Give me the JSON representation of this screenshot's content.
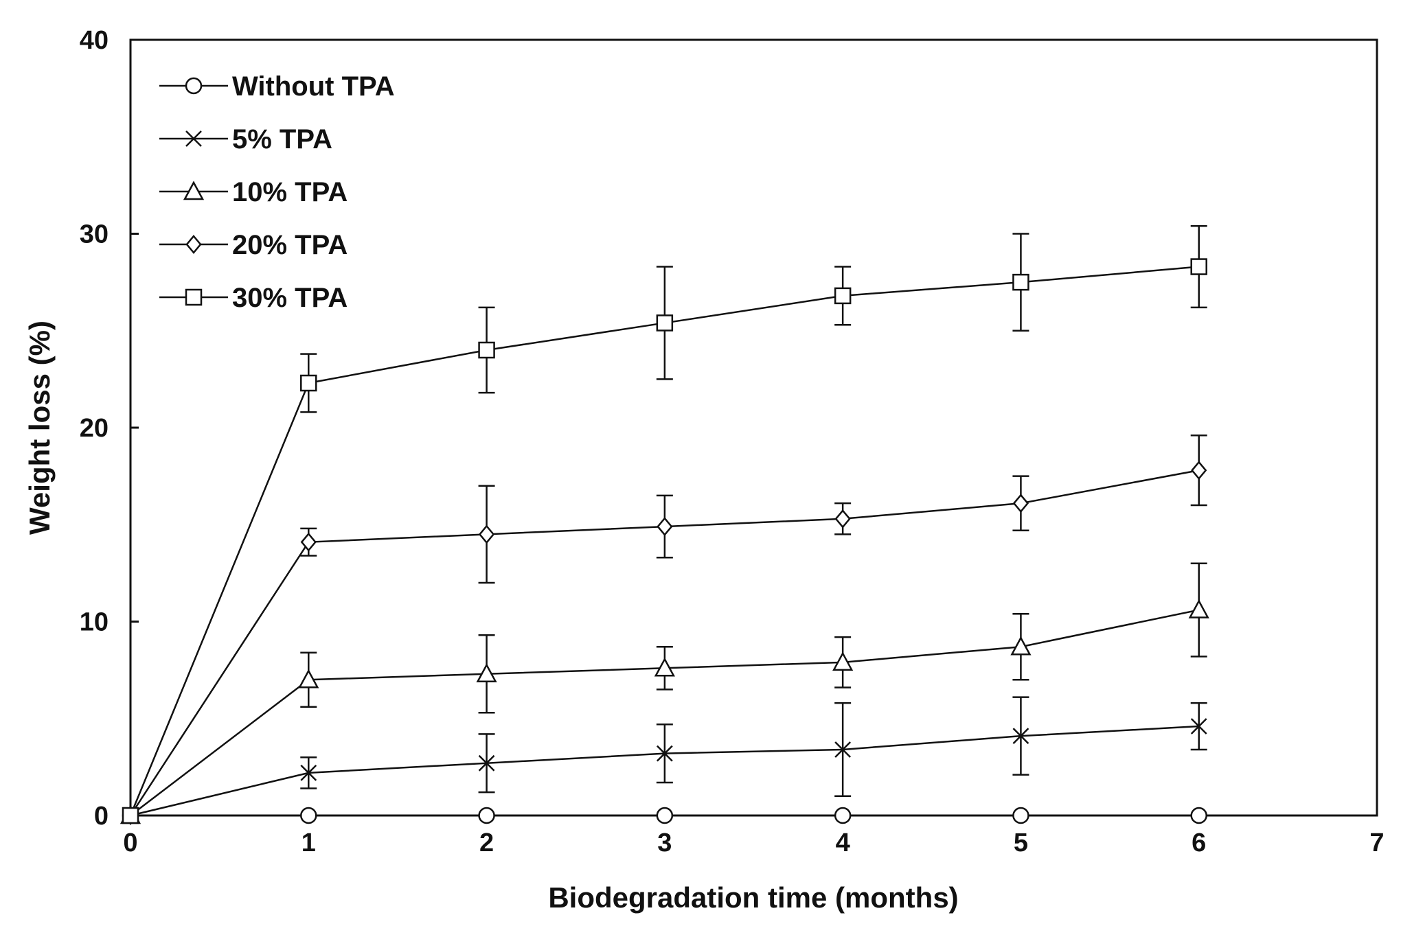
{
  "chart_data": {
    "type": "line",
    "title": "",
    "xlabel": "Biodegradation time (months)",
    "ylabel": "Weight loss  (%)",
    "xlim": [
      0,
      7
    ],
    "ylim": [
      0,
      40
    ],
    "xticks": [
      "0",
      "1",
      "2",
      "3",
      "4",
      "5",
      "6",
      "7"
    ],
    "yticks": [
      "0",
      "10",
      "20",
      "30",
      "40"
    ],
    "legend_position": "top-left",
    "grid": false,
    "series": [
      {
        "name": "Without TPA",
        "marker": "circle",
        "x": [
          0,
          1,
          2,
          3,
          4,
          5,
          6
        ],
        "values": [
          0,
          0,
          0,
          0,
          0,
          0,
          0
        ],
        "errors": [
          0,
          0,
          0,
          0,
          0,
          0,
          0
        ]
      },
      {
        "name": "5% TPA",
        "marker": "x",
        "x": [
          0,
          1,
          2,
          3,
          4,
          5,
          6
        ],
        "values": [
          0,
          2.2,
          2.7,
          3.2,
          3.4,
          4.1,
          4.6
        ],
        "errors": [
          0,
          0.8,
          1.5,
          1.5,
          2.4,
          2.0,
          1.2
        ]
      },
      {
        "name": "10% TPA",
        "marker": "triangle",
        "x": [
          0,
          1,
          2,
          3,
          4,
          5,
          6
        ],
        "values": [
          0,
          7.0,
          7.3,
          7.6,
          7.9,
          8.7,
          10.6
        ],
        "errors": [
          0,
          1.4,
          2.0,
          1.1,
          1.3,
          1.7,
          2.4
        ]
      },
      {
        "name": "20% TPA",
        "marker": "diamond",
        "x": [
          0,
          1,
          2,
          3,
          4,
          5,
          6
        ],
        "values": [
          0,
          14.1,
          14.5,
          14.9,
          15.3,
          16.1,
          17.8
        ],
        "errors": [
          0,
          0.7,
          2.5,
          1.6,
          0.8,
          1.4,
          1.8
        ]
      },
      {
        "name": "30% TPA",
        "marker": "square",
        "x": [
          0,
          1,
          2,
          3,
          4,
          5,
          6
        ],
        "values": [
          0,
          22.3,
          24.0,
          25.4,
          26.8,
          27.5,
          28.3
        ],
        "errors": [
          0,
          1.5,
          2.2,
          2.9,
          1.5,
          2.5,
          2.1
        ]
      }
    ]
  }
}
